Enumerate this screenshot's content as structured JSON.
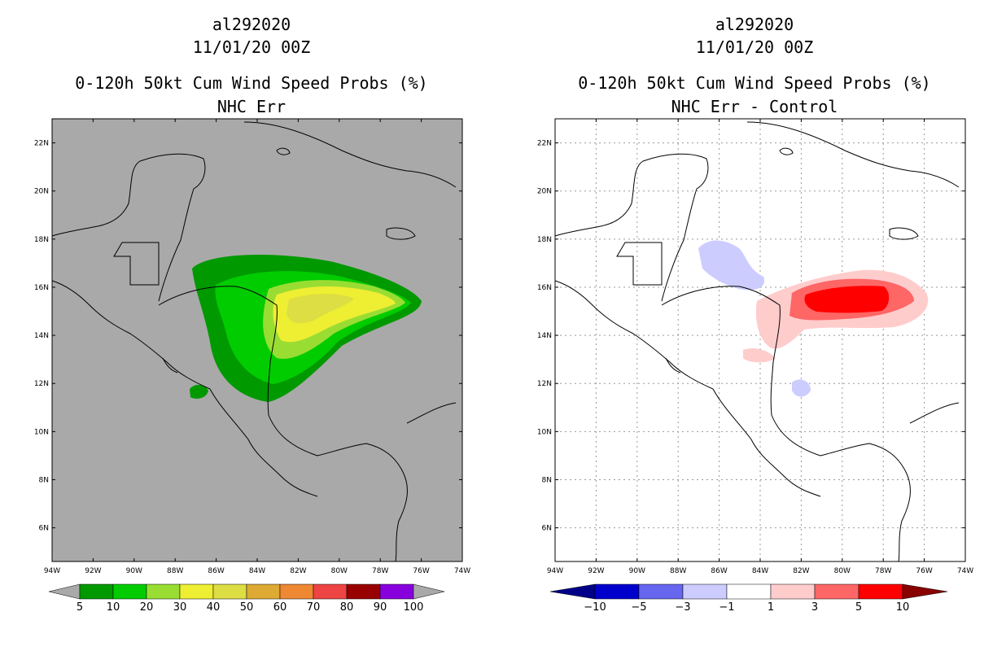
{
  "left_panel": {
    "storm_id": "al292020",
    "datetime": "11/01/20 00Z",
    "product": "0-120h 50kt Cum Wind Speed Probs (%)",
    "subtitle": "NHC Err",
    "background_color": "#a9a9a9",
    "colorbar": {
      "labels": [
        "5",
        "10",
        "20",
        "30",
        "40",
        "50",
        "60",
        "70",
        "80",
        "90",
        "100"
      ],
      "colors": [
        "#009900",
        "#00cc00",
        "#99dd33",
        "#eeee33",
        "#dddd44",
        "#ddaa33",
        "#ee8833",
        "#ee4444",
        "#990000",
        "#8800dd"
      ],
      "arrow_color": "#a9a9a9"
    }
  },
  "right_panel": {
    "storm_id": "al292020",
    "datetime": "11/01/20 00Z",
    "product": "0-120h 50kt Cum Wind Speed Probs (%)",
    "subtitle": "NHC Err - Control",
    "background_color": "#ffffff",
    "colorbar": {
      "labels": [
        "-10",
        "-5",
        "-3",
        "-1",
        "1",
        "3",
        "5",
        "10"
      ],
      "colors": [
        "#0000cc",
        "#6666ee",
        "#ccccff",
        "#ffffff",
        "#ffcccc",
        "#ff6666",
        "#ff0000"
      ],
      "arrow_low": "#000088",
      "arrow_high": "#880000"
    }
  },
  "axes": {
    "lat_labels": [
      "22N",
      "20N",
      "18N",
      "16N",
      "14N",
      "12N",
      "10N",
      "8N",
      "6N"
    ],
    "lat_values": [
      22,
      20,
      18,
      16,
      14,
      12,
      10,
      8,
      6
    ],
    "lon_labels": [
      "94W",
      "92W",
      "90W",
      "88W",
      "86W",
      "84W",
      "82W",
      "80W",
      "78W",
      "76W",
      "74W"
    ],
    "lon_values": [
      -94,
      -92,
      -90,
      -88,
      -86,
      -84,
      -82,
      -80,
      -78,
      -76,
      -74
    ],
    "lon_range": [
      -94,
      -74
    ],
    "lat_range": [
      4.6,
      23
    ]
  }
}
